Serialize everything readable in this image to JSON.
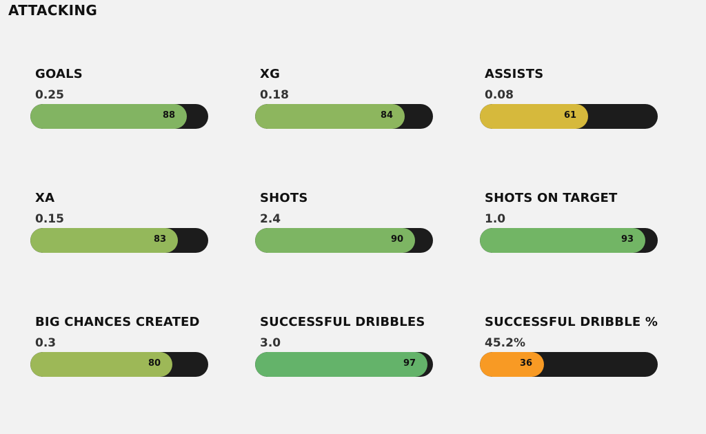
{
  "title": "ATTACKING",
  "metrics": [
    {
      "label": "GOALS",
      "value": "0.25",
      "percentile": 88,
      "color": "#82b462"
    },
    {
      "label": "XG",
      "value": "0.18",
      "percentile": 84,
      "color": "#8db65e"
    },
    {
      "label": "ASSISTS",
      "value": "0.08",
      "percentile": 61,
      "color": "#d6b93c"
    },
    {
      "label": "XA",
      "value": "0.15",
      "percentile": 83,
      "color": "#94b85b"
    },
    {
      "label": "SHOTS",
      "value": "2.4",
      "percentile": 90,
      "color": "#7db563"
    },
    {
      "label": "SHOTS ON TARGET",
      "value": "1.0",
      "percentile": 93,
      "color": "#72b565"
    },
    {
      "label": "BIG CHANCES CREATED",
      "value": "0.3",
      "percentile": 80,
      "color": "#9db857"
    },
    {
      "label": "SUCCESSFUL DRIBBLES",
      "value": "3.0",
      "percentile": 97,
      "color": "#64b36a"
    },
    {
      "label": "SUCCESSFUL DRIBBLE %",
      "value": "45.2%",
      "percentile": 36,
      "color": "#f89a24"
    }
  ],
  "chart_data": {
    "type": "bar",
    "title": "ATTACKING",
    "categories": [
      "GOALS",
      "XG",
      "ASSISTS",
      "XA",
      "SHOTS",
      "SHOTS ON TARGET",
      "BIG CHANCES CREATED",
      "SUCCESSFUL DRIBBLES",
      "SUCCESSFUL DRIBBLE %"
    ],
    "series": [
      {
        "values": [
          88,
          84,
          61,
          83,
          90,
          93,
          80,
          97,
          36
        ]
      }
    ],
    "ylim": [
      0,
      100
    ],
    "grid": false
  }
}
